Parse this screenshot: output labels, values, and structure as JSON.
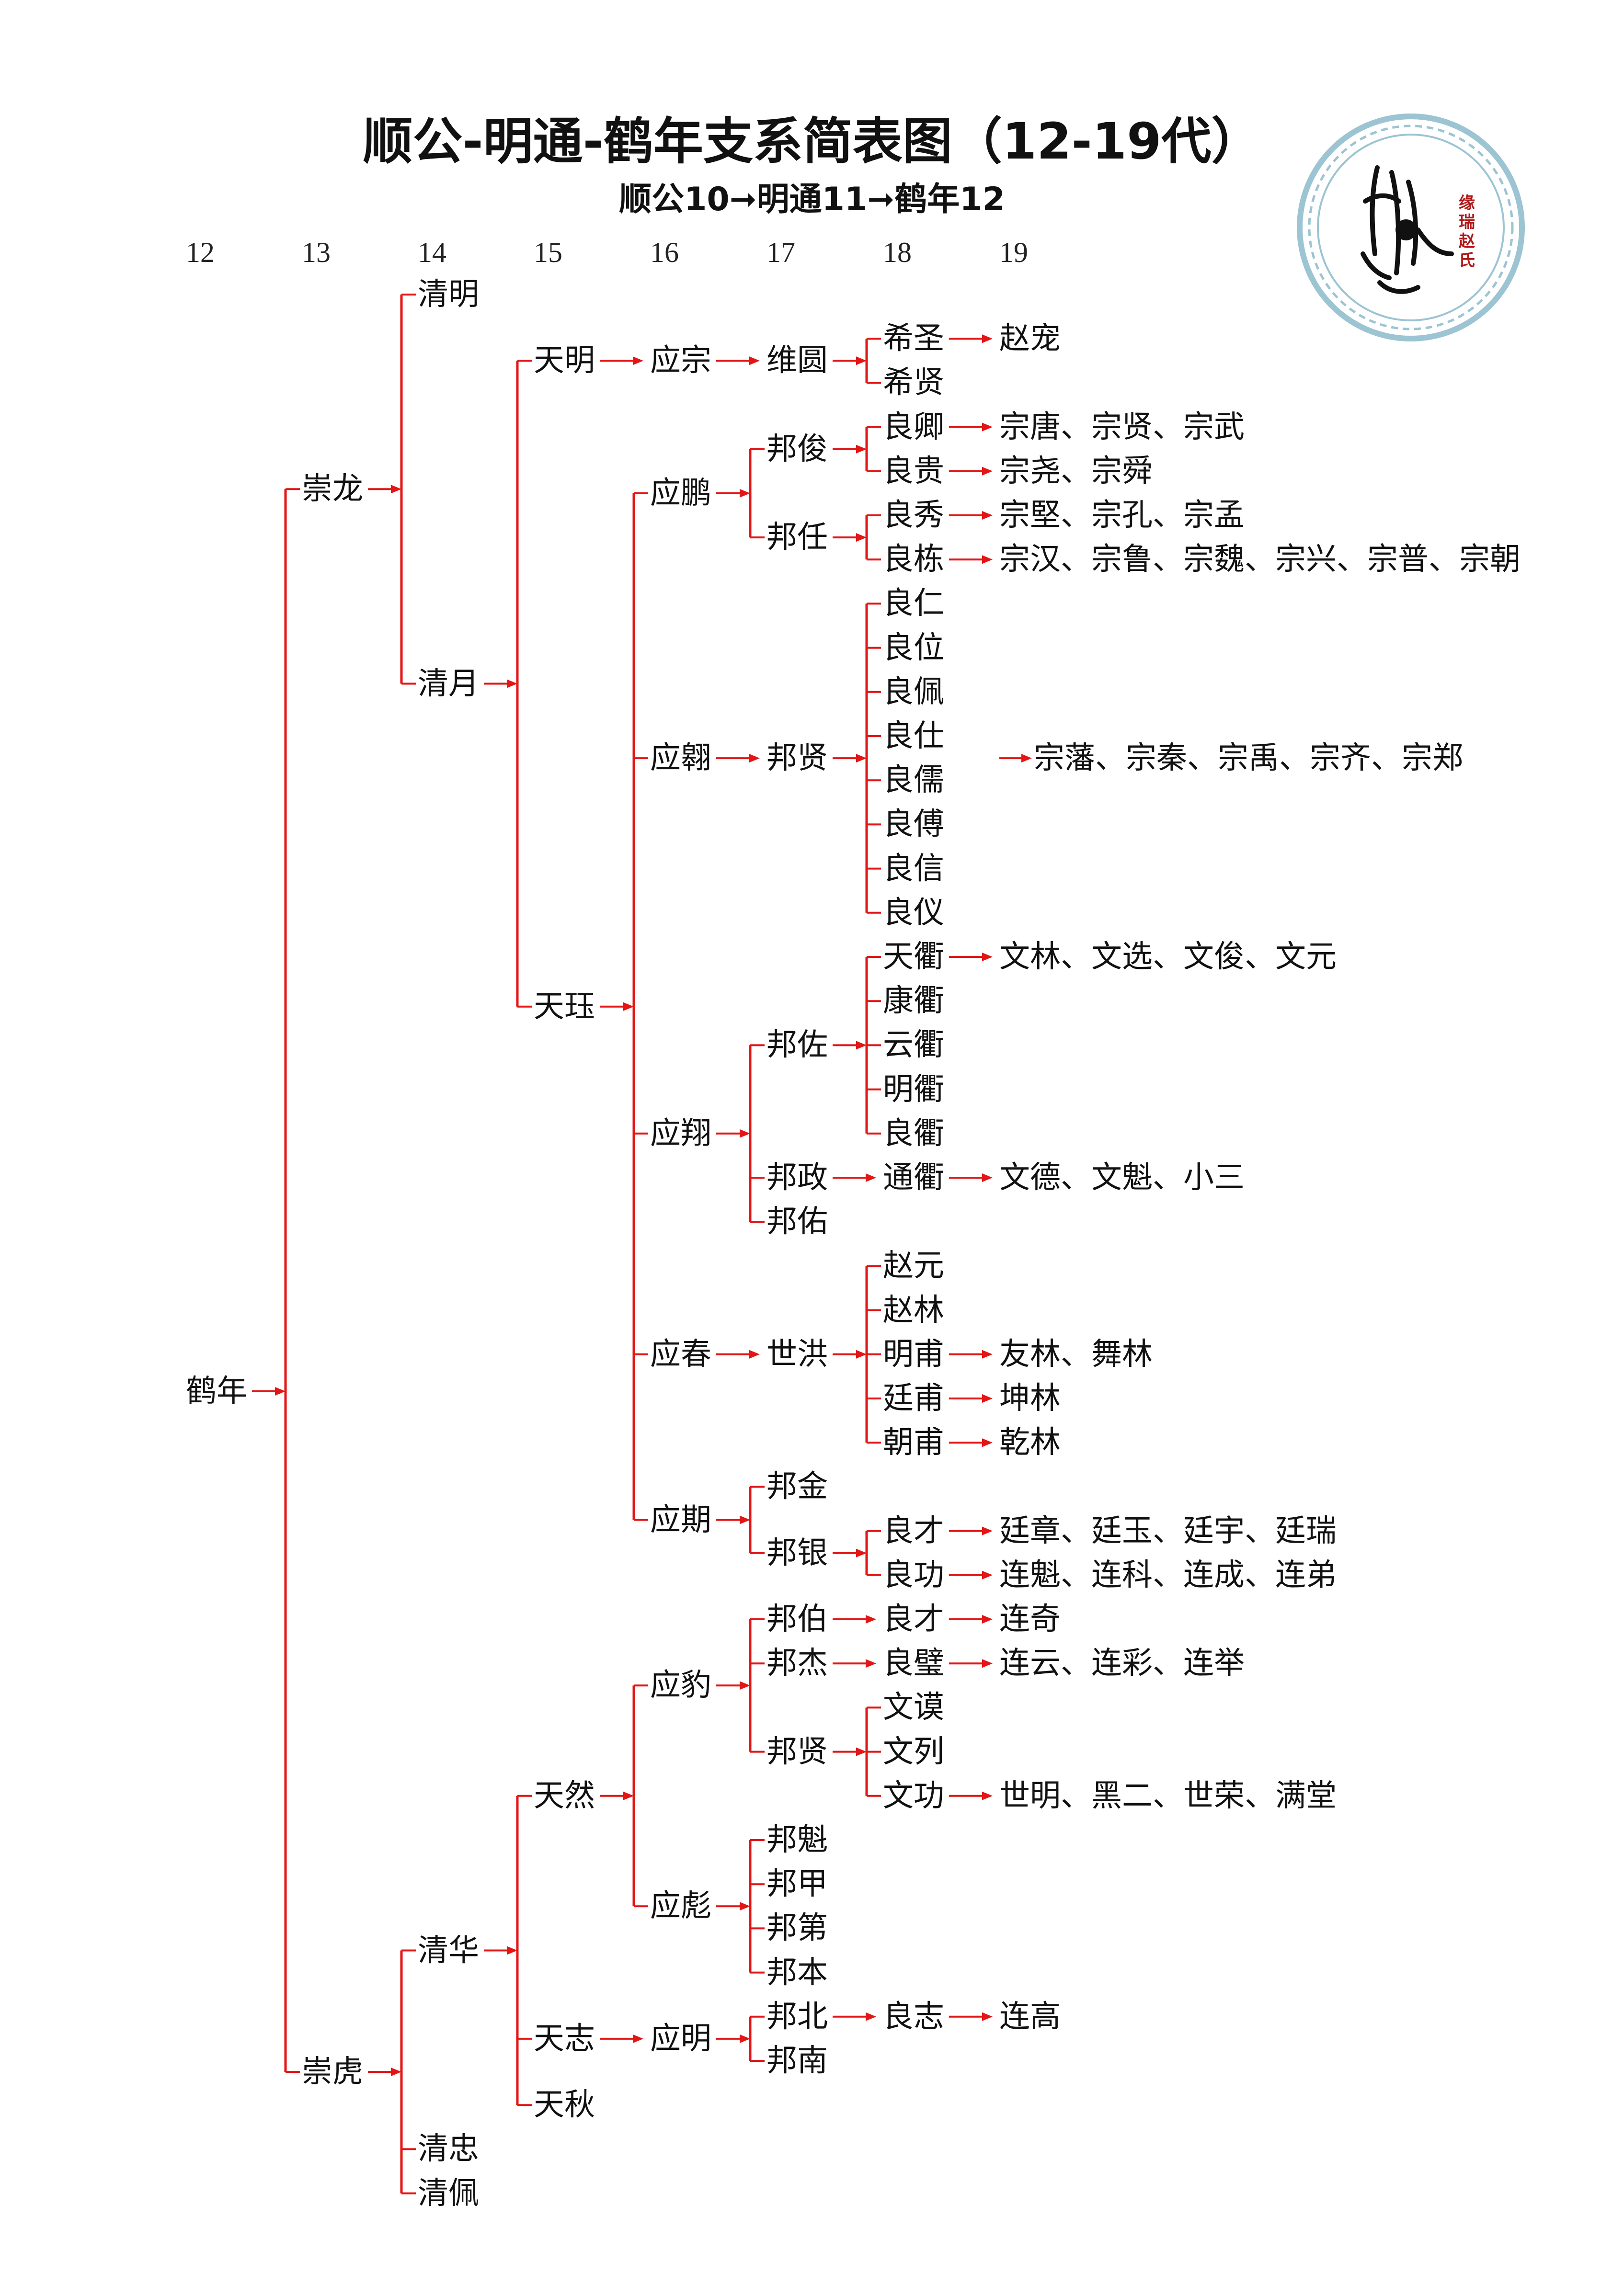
{
  "title": "顺公-明通-鹤年支系简表图（12-19代）",
  "subtitle": "顺公10➞明通11➞鹤年12",
  "logo": {
    "text": "缘瑞赵氏",
    "ring_color": "#9cc4d2"
  },
  "colors": {
    "connector": "#e31515",
    "text": "#111111"
  },
  "generations": [
    "12",
    "13",
    "14",
    "15",
    "16",
    "17",
    "18",
    "19"
  ],
  "tree": {
    "name": "鹤年",
    "children": [
      {
        "name": "崇龙",
        "children": [
          {
            "name": "清明"
          },
          {
            "name": "清月",
            "children": [
              {
                "name": "天明",
                "children": [
                  {
                    "name": "应宗",
                    "children": [
                      {
                        "name": "维圆",
                        "children": [
                          {
                            "name": "希圣",
                            "children": [
                              {
                                "name": "赵宠"
                              }
                            ]
                          },
                          {
                            "name": "希贤"
                          }
                        ]
                      }
                    ]
                  }
                ]
              },
              {
                "name": "天珏",
                "children": [
                  {
                    "name": "应鹏",
                    "children": [
                      {
                        "name": "邦俊",
                        "children": [
                          {
                            "name": "良卿",
                            "children": [
                              {
                                "name": "宗唐、宗贤、宗武"
                              }
                            ]
                          },
                          {
                            "name": "良贵",
                            "children": [
                              {
                                "name": "宗尧、宗舜"
                              }
                            ]
                          }
                        ]
                      },
                      {
                        "name": "邦任",
                        "children": [
                          {
                            "name": "良秀",
                            "children": [
                              {
                                "name": "宗堅、宗孔、宗孟"
                              }
                            ]
                          },
                          {
                            "name": "良栋",
                            "children": [
                              {
                                "name": "宗汉、宗鲁、宗魏、宗兴、宗普、宗朝"
                              }
                            ]
                          }
                        ]
                      }
                    ]
                  },
                  {
                    "name": "应翱",
                    "children": [
                      {
                        "name": "邦贤",
                        "children": [
                          {
                            "name": "良仁"
                          },
                          {
                            "name": "良位"
                          },
                          {
                            "name": "良佩"
                          },
                          {
                            "name": "良仕"
                          },
                          {
                            "name": "良儒"
                          },
                          {
                            "name": "良傅"
                          },
                          {
                            "name": "良信"
                          },
                          {
                            "name": "良仪"
                          }
                        ],
                        "descendants": "宗藩、宗秦、宗禹、宗齐、宗郑"
                      }
                    ]
                  },
                  {
                    "name": "应翔",
                    "children": [
                      {
                        "name": "邦佐",
                        "children": [
                          {
                            "name": "天衢",
                            "children": [
                              {
                                "name": "文林、文选、文俊、文元"
                              }
                            ]
                          },
                          {
                            "name": "康衢"
                          },
                          {
                            "name": "云衢"
                          },
                          {
                            "name": "明衢"
                          },
                          {
                            "name": "良衢"
                          }
                        ]
                      },
                      {
                        "name": "邦政",
                        "children": [
                          {
                            "name": "通衢",
                            "children": [
                              {
                                "name": "文德、文魁、小三"
                              }
                            ]
                          }
                        ]
                      },
                      {
                        "name": "邦佑"
                      }
                    ]
                  },
                  {
                    "name": "应春",
                    "children": [
                      {
                        "name": "世洪",
                        "children": [
                          {
                            "name": "赵元"
                          },
                          {
                            "name": "赵林"
                          },
                          {
                            "name": "明甫",
                            "children": [
                              {
                                "name": "友林、舞林"
                              }
                            ]
                          },
                          {
                            "name": "廷甫",
                            "children": [
                              {
                                "name": "坤林"
                              }
                            ]
                          },
                          {
                            "name": "朝甫",
                            "children": [
                              {
                                "name": "乾林"
                              }
                            ]
                          }
                        ]
                      }
                    ]
                  },
                  {
                    "name": "应期",
                    "children": [
                      {
                        "name": "邦金"
                      },
                      {
                        "name": "邦银",
                        "children": [
                          {
                            "name": "良才",
                            "children": [
                              {
                                "name": "廷章、廷玉、廷宇、廷瑞"
                              }
                            ]
                          },
                          {
                            "name": "良功",
                            "children": [
                              {
                                "name": "连魁、连科、连成、连弟"
                              }
                            ]
                          }
                        ]
                      }
                    ]
                  }
                ]
              }
            ]
          }
        ]
      },
      {
        "name": "崇虎",
        "children": [
          {
            "name": "清华",
            "children": [
              {
                "name": "天然",
                "children": [
                  {
                    "name": "应豹",
                    "children": [
                      {
                        "name": "邦伯",
                        "children": [
                          {
                            "name": "良才",
                            "children": [
                              {
                                "name": "连奇"
                              }
                            ]
                          }
                        ]
                      },
                      {
                        "name": "邦杰",
                        "children": [
                          {
                            "name": "良璧",
                            "children": [
                              {
                                "name": "连云、连彩、连举"
                              }
                            ]
                          }
                        ]
                      },
                      {
                        "name": "邦贤",
                        "children": [
                          {
                            "name": "文谟"
                          },
                          {
                            "name": "文列"
                          },
                          {
                            "name": "文功",
                            "children": [
                              {
                                "name": "世明、黑二、世荣、满堂"
                              }
                            ]
                          }
                        ]
                      }
                    ]
                  },
                  {
                    "name": "应彪",
                    "children": [
                      {
                        "name": "邦魁"
                      },
                      {
                        "name": "邦甲"
                      },
                      {
                        "name": "邦第"
                      },
                      {
                        "name": "邦本"
                      }
                    ]
                  }
                ]
              },
              {
                "name": "天志",
                "children": [
                  {
                    "name": "应明",
                    "children": [
                      {
                        "name": "邦北",
                        "children": [
                          {
                            "name": "良志",
                            "children": [
                              {
                                "name": "连高"
                              }
                            ]
                          }
                        ]
                      },
                      {
                        "name": "邦南"
                      }
                    ]
                  }
                ]
              },
              {
                "name": "天秋"
              }
            ]
          },
          {
            "name": "清忠"
          },
          {
            "name": "清佩"
          }
        ]
      }
    ]
  }
}
